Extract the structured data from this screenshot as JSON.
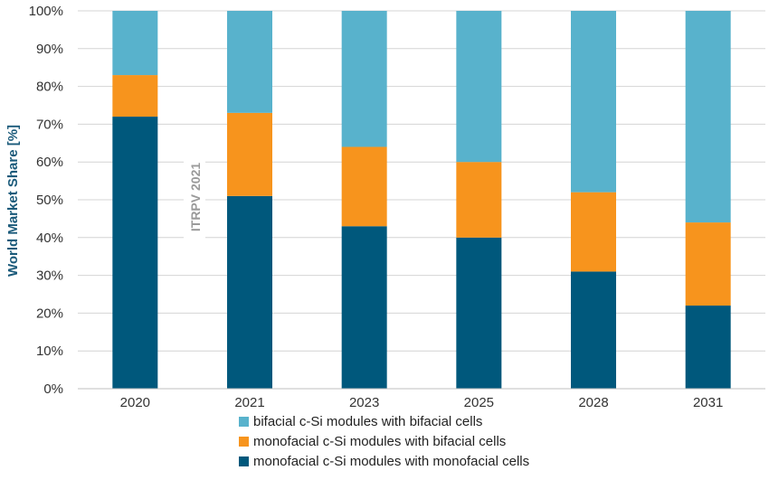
{
  "chart_data": {
    "type": "bar",
    "stacked": true,
    "ylabel": "World Market Share [%]",
    "ylim": [
      0,
      100
    ],
    "yticks": [
      "0%",
      "10%",
      "20%",
      "30%",
      "40%",
      "50%",
      "60%",
      "70%",
      "80%",
      "90%",
      "100%"
    ],
    "categories": [
      "2020",
      "2021",
      "2023",
      "2025",
      "2028",
      "2031"
    ],
    "series": [
      {
        "name": "monofacial c-Si modules with monofacial cells",
        "color": "#00587c",
        "values": [
          72,
          51,
          43,
          40,
          31,
          22
        ]
      },
      {
        "name": "monofacial c-Si modules with bifacial cells",
        "color": "#f7941d",
        "values": [
          11,
          22,
          21,
          20,
          21,
          22
        ]
      },
      {
        "name": "bifacial c-Si modules with bifacial cells",
        "color": "#58b2cc",
        "values": [
          17,
          27,
          36,
          40,
          48,
          56
        ]
      }
    ],
    "legend_order": [
      2,
      1,
      0
    ],
    "legend_position": "bottom",
    "grid": true,
    "annotation": "ITRPV 2021"
  }
}
